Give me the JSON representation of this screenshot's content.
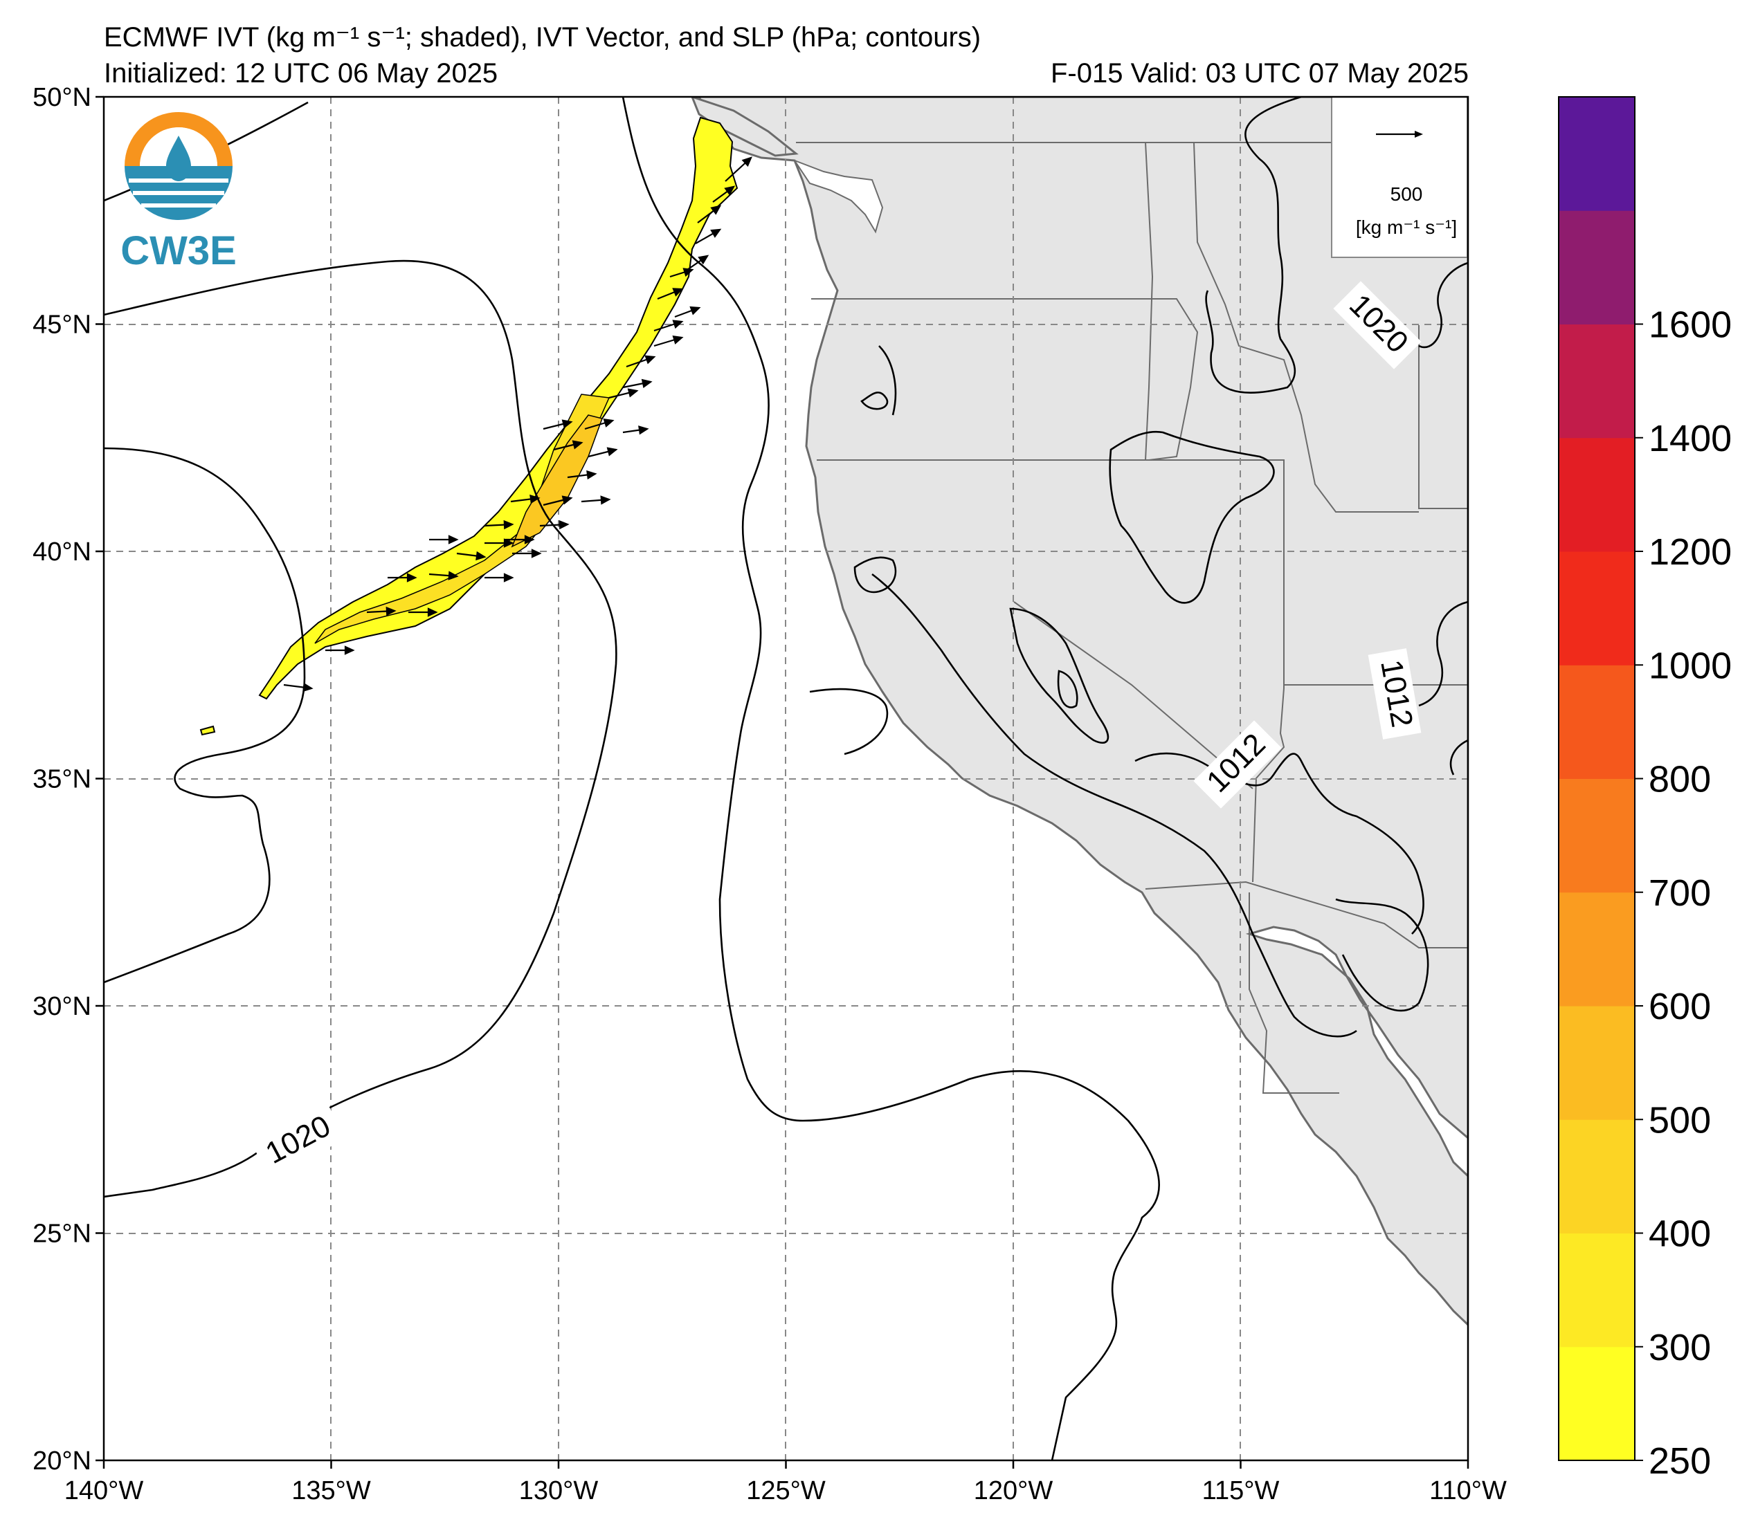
{
  "header": {
    "title": "ECMWF IVT (kg m⁻¹ s⁻¹; shaded), IVT Vector, and SLP (hPa; contours)",
    "initialized": "Initialized: 12 UTC 06 May 2025",
    "valid": "F-015  Valid: 03 UTC 07 May 2025"
  },
  "logo": {
    "text": "CW3E"
  },
  "map": {
    "lon_range": [
      -140,
      -110
    ],
    "lat_range": [
      20,
      50
    ],
    "lat_ticks": [
      "50°N",
      "45°N",
      "40°N",
      "35°N",
      "30°N",
      "25°N",
      "20°N"
    ],
    "lon_ticks": [
      "140°W",
      "135°W",
      "130°W",
      "125°W",
      "120°W",
      "115°W",
      "110°W"
    ],
    "grid": "dashed",
    "land_color": "#e5e5e5",
    "ocean_color": "#ffffff"
  },
  "contours": {
    "labels": [
      "1020",
      "1020",
      "1012",
      "1012"
    ]
  },
  "vector_legend": {
    "value": "500",
    "units": "[kg m⁻¹ s⁻¹]"
  },
  "colorbar": {
    "levels": [
      "250",
      "300",
      "400",
      "500",
      "600",
      "700",
      "800",
      "1000",
      "1200",
      "1400",
      "1600"
    ],
    "colors": [
      "#ffff22",
      "#fde924",
      "#fcd424",
      "#fbbc22",
      "#fa9c20",
      "#f87b1e",
      "#f5581c",
      "#f02b1b",
      "#e31e24",
      "#c21c4a",
      "#8f1c6e",
      "#5c1899"
    ]
  }
}
